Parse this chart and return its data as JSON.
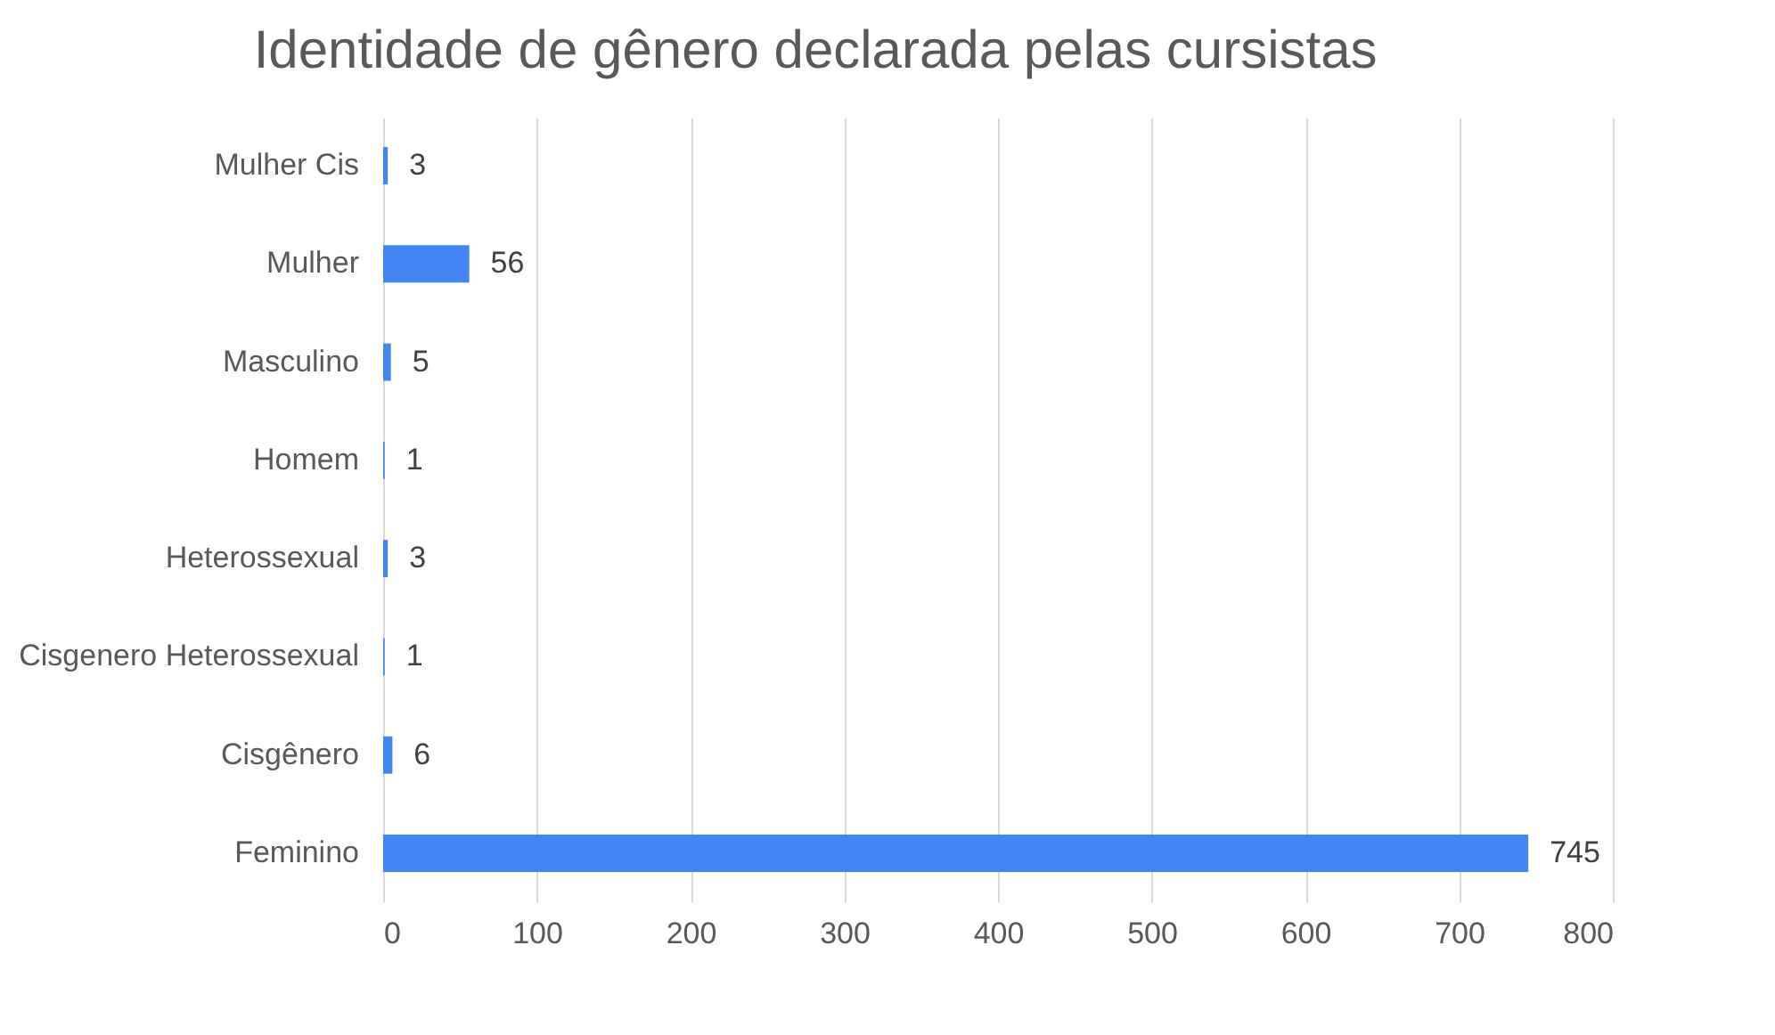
{
  "chart_data": {
    "type": "bar",
    "orientation": "horizontal",
    "title": "Identidade de gênero declarada pelas cursistas",
    "categories": [
      "Mulher Cis",
      "Mulher",
      "Masculino",
      "Homem",
      "Heterossexual",
      "Cisgenero Heterossexual",
      "Cisgênero",
      "Feminino"
    ],
    "values": [
      3,
      56,
      5,
      1,
      3,
      1,
      6,
      745
    ],
    "color": "#4285f4",
    "xlim": [
      0,
      800
    ],
    "xticks": [
      0,
      100,
      200,
      300,
      400,
      500,
      600,
      700,
      800
    ],
    "grid": "x",
    "data_labels": true
  }
}
